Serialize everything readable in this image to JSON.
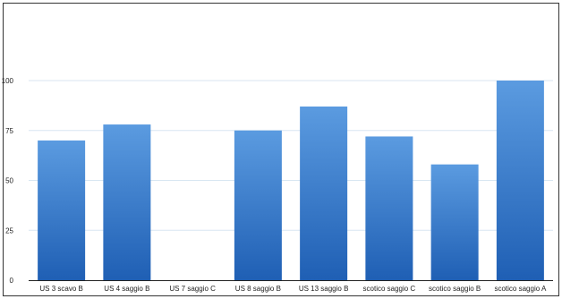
{
  "chart_data": {
    "type": "bar",
    "categories": [
      "US 3 scavo B",
      "US 4 saggio B",
      "US 7 saggio C",
      "US 8 saggio B",
      "US 13 saggio B",
      "scotico saggio C",
      "scotico saggio B",
      "scotico saggio A"
    ],
    "values": [
      70,
      78,
      0,
      75,
      87,
      72,
      58,
      100
    ],
    "yticks": [
      0,
      25,
      50,
      75,
      100
    ],
    "ylim": [
      0,
      100
    ],
    "grid": true,
    "legend": "none",
    "colors": {
      "bar_top": "#5b9be0",
      "bar_bottom": "#1f5fb4",
      "grid": "#d8e6f2",
      "axis": "#222222"
    }
  }
}
